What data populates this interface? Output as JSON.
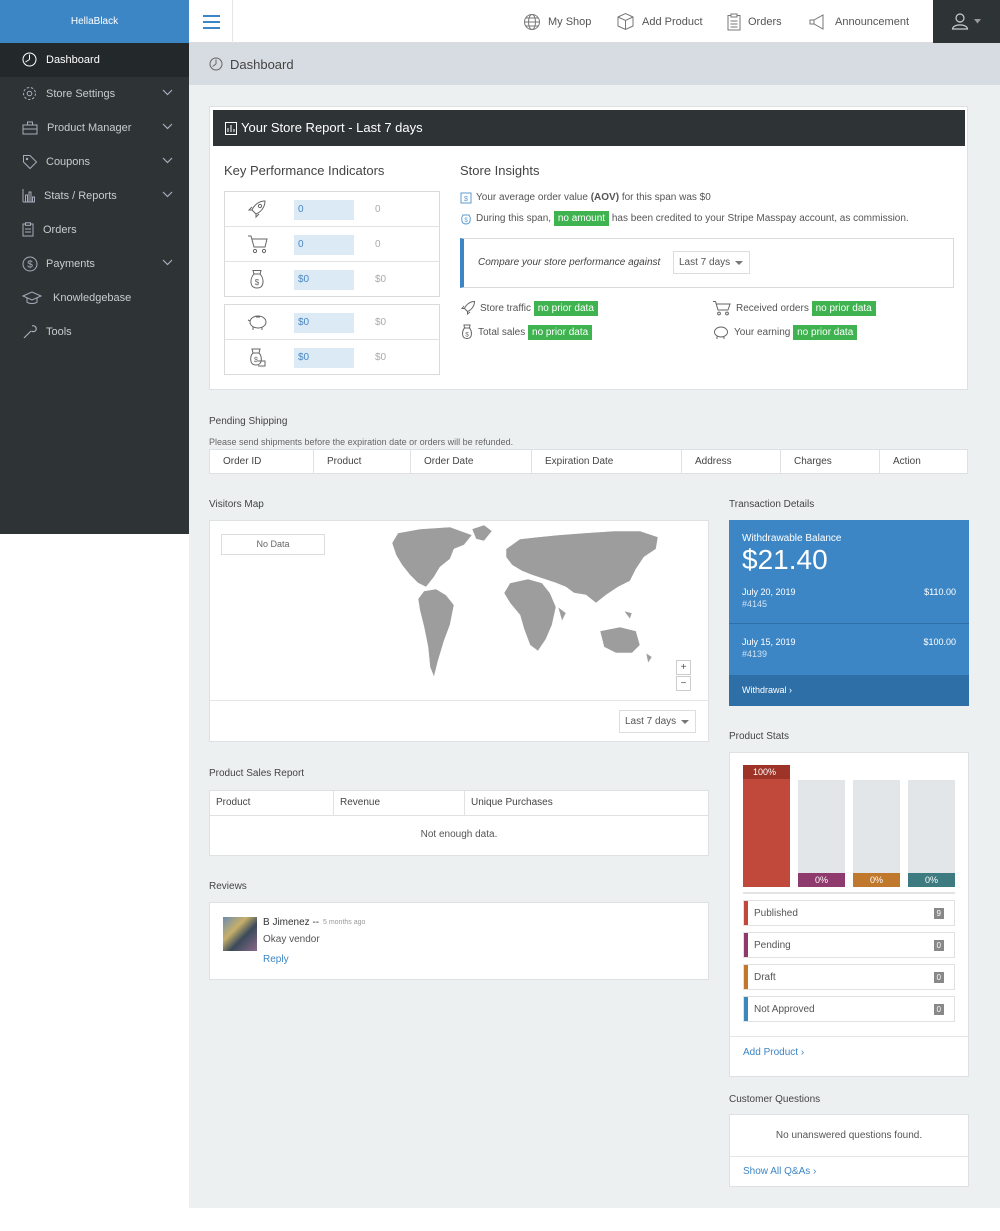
{
  "app": {
    "brand": "HellaBlack"
  },
  "topnav": [
    {
      "label": "My Shop",
      "icon": "globe-icon"
    },
    {
      "label": "Add Product",
      "icon": "box-icon"
    },
    {
      "label": "Orders",
      "icon": "clipboard-icon"
    },
    {
      "label": "Announcement",
      "icon": "megaphone-icon"
    }
  ],
  "sidebar": {
    "items": [
      {
        "label": "Dashboard",
        "icon": "dashboard-icon",
        "active": true
      },
      {
        "label": "Store Settings",
        "icon": "gear-icon",
        "expandable": true
      },
      {
        "label": "Product Manager",
        "icon": "briefcase-icon",
        "expandable": true
      },
      {
        "label": "Coupons",
        "icon": "tag-icon",
        "expandable": true
      },
      {
        "label": "Stats / Reports",
        "icon": "bar-chart-icon",
        "expandable": true
      },
      {
        "label": "Orders",
        "icon": "clipboard-icon"
      },
      {
        "label": "Payments",
        "icon": "dollar-icon",
        "expandable": true
      },
      {
        "label": "Knowledgebase",
        "icon": "graduation-cap-icon"
      },
      {
        "label": "Tools",
        "icon": "wrench-icon"
      }
    ]
  },
  "breadcrumb": {
    "title": "Dashboard"
  },
  "report": {
    "title": "Your Store Report - Last 7 days",
    "kpi_heading": "Key Performance Indicators",
    "kpis_group1": [
      {
        "icon": "rocket-icon",
        "value": "0",
        "prev": "0"
      },
      {
        "icon": "cart-icon",
        "value": "0",
        "prev": "0"
      },
      {
        "icon": "money-bag-icon",
        "value": "$0",
        "prev": "$0"
      }
    ],
    "kpis_group2": [
      {
        "icon": "piggy-bank-icon",
        "value": "$0",
        "prev": "$0"
      },
      {
        "icon": "money-hand-icon",
        "value": "$0",
        "prev": "$0"
      }
    ],
    "insights_heading": "Store Insights",
    "aov_text_pre": "Your average order value",
    "aov_bold": "(AOV)",
    "aov_text_post": "for this span was $0",
    "credit_pre": "During this span,",
    "credit_tag": "no amount",
    "credit_post": "has been credited to your Stripe Masspay account, as commission.",
    "compare_label": "Compare your store performance against",
    "compare_value": "Last 7 days",
    "metrics": [
      {
        "label": "Store traffic",
        "tag": "no prior data",
        "icon": "rocket-icon"
      },
      {
        "label": "Received orders",
        "tag": "no prior data",
        "icon": "cart-icon"
      },
      {
        "label": "Total sales",
        "tag": "no prior data",
        "icon": "money-bag-icon"
      },
      {
        "label": "Your earning",
        "tag": "no prior data",
        "icon": "piggy-bank-icon"
      }
    ]
  },
  "pending_shipping": {
    "title": "Pending Shipping",
    "note": "Please send shipments before the expiration date or orders will be refunded.",
    "columns": [
      "Order ID",
      "Product",
      "Order Date",
      "Expiration Date",
      "Address",
      "Charges",
      "Action"
    ]
  },
  "visitors_map": {
    "title": "Visitors Map",
    "no_data": "No Data",
    "zoom_in": "+",
    "zoom_out": "−",
    "range": "Last 7 days"
  },
  "transactions": {
    "title": "Transaction Details",
    "balance_label": "Withdrawable Balance",
    "balance": "$21.40",
    "items": [
      {
        "date": "July 20, 2019",
        "id": "#4145",
        "amount": "$110.00"
      },
      {
        "date": "July 15, 2019",
        "id": "#4139",
        "amount": "$100.00"
      }
    ],
    "withdrawal": "Withdrawal"
  },
  "product_sales": {
    "title": "Product Sales Report",
    "columns": [
      "Product",
      "Revenue",
      "Unique Purchases"
    ],
    "empty": "Not enough data."
  },
  "reviews": {
    "title": "Reviews",
    "items": [
      {
        "author": "B Jimenez --",
        "time": "5 months ago",
        "text": "Okay vendor",
        "reply": "Reply"
      }
    ]
  },
  "product_stats": {
    "title": "Product Stats",
    "bars": [
      {
        "label": "100%",
        "fraction": 1.0,
        "color": "#c0493c"
      },
      {
        "label": "0%",
        "fraction": 0,
        "color": "#8e3a6c"
      },
      {
        "label": "0%",
        "fraction": 0,
        "color": "#c0782c"
      },
      {
        "label": "0%",
        "fraction": 0,
        "color": "#3d7b80"
      }
    ],
    "rows": [
      {
        "name": "Published",
        "count": "9",
        "color": "#c0493c"
      },
      {
        "name": "Pending",
        "count": "0",
        "color": "#8e3a6c"
      },
      {
        "name": "Draft",
        "count": "0",
        "color": "#c0782c"
      },
      {
        "name": "Not Approved",
        "count": "0",
        "color": "#3d88b8"
      }
    ],
    "add_link": "Add Product"
  },
  "customer_questions": {
    "title": "Customer Questions",
    "empty": "No unanswered questions found.",
    "link": "Show All Q&As"
  },
  "colors": {
    "brand": "#3d86c6",
    "sidebar": "#2e3436",
    "success": "#3eb34f"
  }
}
